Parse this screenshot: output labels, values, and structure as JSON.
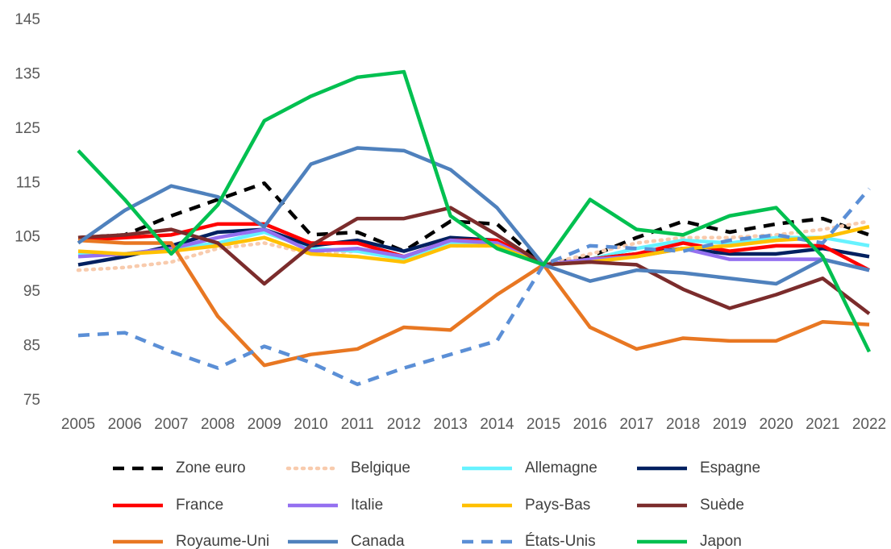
{
  "chart_data": {
    "type": "line",
    "categories": [
      "2005",
      "2006",
      "2007",
      "2008",
      "2009",
      "2010",
      "2011",
      "2012",
      "2013",
      "2014",
      "2015",
      "2016",
      "2017",
      "2018",
      "2019",
      "2020",
      "2021",
      "2022"
    ],
    "ylim": [
      75,
      145
    ],
    "yticks": [
      75,
      85,
      95,
      105,
      115,
      125,
      135,
      145
    ],
    "grid": false,
    "legend": "bottom",
    "series": [
      {
        "name": "Zone euro",
        "color": "#000000",
        "style": "dashed",
        "values": [
          105,
          105.5,
          109,
          112,
          115,
          105.5,
          106,
          102.5,
          108,
          107.5,
          100,
          101.5,
          105,
          108,
          106,
          107.5,
          108.5,
          105.5
        ]
      },
      {
        "name": "Belgique",
        "color": "#f8cbad",
        "style": "dotted",
        "values": [
          99,
          99.5,
          100.5,
          103,
          104,
          102,
          102.5,
          101,
          103.5,
          103.5,
          100,
          102,
          104,
          105,
          105,
          105.5,
          106.5,
          108
        ]
      },
      {
        "name": "Allemagne",
        "color": "#66f2ff",
        "style": "solid",
        "values": [
          102,
          102,
          103,
          104,
          106,
          103,
          102.5,
          101,
          104,
          104,
          100,
          101,
          103,
          104.5,
          104,
          105,
          105,
          103.5
        ]
      },
      {
        "name": "Espagne",
        "color": "#002060",
        "style": "solid",
        "values": [
          100,
          101.5,
          103.5,
          106,
          106.5,
          103.5,
          104.5,
          102.5,
          105,
          104.5,
          100,
          101,
          102,
          103,
          102,
          102,
          103,
          101.5
        ]
      },
      {
        "name": "France",
        "color": "#ff0000",
        "style": "solid",
        "values": [
          104.5,
          105,
          105.5,
          107.5,
          107.5,
          104,
          104,
          101.5,
          104.5,
          104.5,
          100,
          101,
          102,
          104,
          102.5,
          103.5,
          103.5,
          99
        ]
      },
      {
        "name": "Italie",
        "color": "#9470f0",
        "style": "solid",
        "values": [
          101.5,
          102,
          103,
          105,
          106.5,
          102.5,
          103,
          101.5,
          104.5,
          104,
          100,
          101,
          101.5,
          103,
          101,
          101,
          101,
          99
        ]
      },
      {
        "name": "Pays-Bas",
        "color": "#ffc000",
        "style": "solid",
        "values": [
          102.5,
          102,
          102.5,
          103.5,
          105,
          102,
          101.5,
          100.5,
          103.5,
          103.5,
          100,
          100.5,
          101.5,
          103,
          103.5,
          104.5,
          105,
          107
        ]
      },
      {
        "name": "Suède",
        "color": "#7b2c2c",
        "style": "solid",
        "values": [
          105,
          105.5,
          106.5,
          104,
          96.5,
          103.5,
          108.5,
          108.5,
          110.5,
          105.5,
          100,
          100.5,
          100,
          95.5,
          92,
          94.5,
          97.5,
          91
        ]
      },
      {
        "name": "Royaume-Uni",
        "color": "#e87722",
        "style": "solid",
        "values": [
          104.5,
          104,
          104,
          90.5,
          81.5,
          83.5,
          84.5,
          88.5,
          88,
          94.5,
          100,
          88.5,
          84.5,
          86.5,
          86,
          86,
          89.5,
          89
        ]
      },
      {
        "name": "Canada",
        "color": "#4f81bd",
        "style": "solid",
        "values": [
          104,
          110,
          114.5,
          112.5,
          107,
          118.5,
          121.5,
          121,
          117.5,
          110.5,
          100,
          97,
          99,
          98.5,
          97.5,
          96.5,
          101,
          99
        ]
      },
      {
        "name": "États-Unis",
        "color": "#5b8fd6",
        "style": "dashed",
        "values": [
          87,
          87.5,
          84,
          81,
          85,
          82,
          78,
          81,
          83.5,
          86,
          100,
          103.5,
          103,
          102.5,
          104.5,
          105.5,
          104,
          114
        ]
      },
      {
        "name": "Japon",
        "color": "#00c050",
        "style": "solid",
        "values": [
          121,
          112,
          102,
          111,
          126.5,
          131,
          134.5,
          135.5,
          109,
          103,
          100,
          112,
          106.5,
          105.5,
          109,
          110.5,
          101.5,
          84
        ]
      }
    ]
  }
}
